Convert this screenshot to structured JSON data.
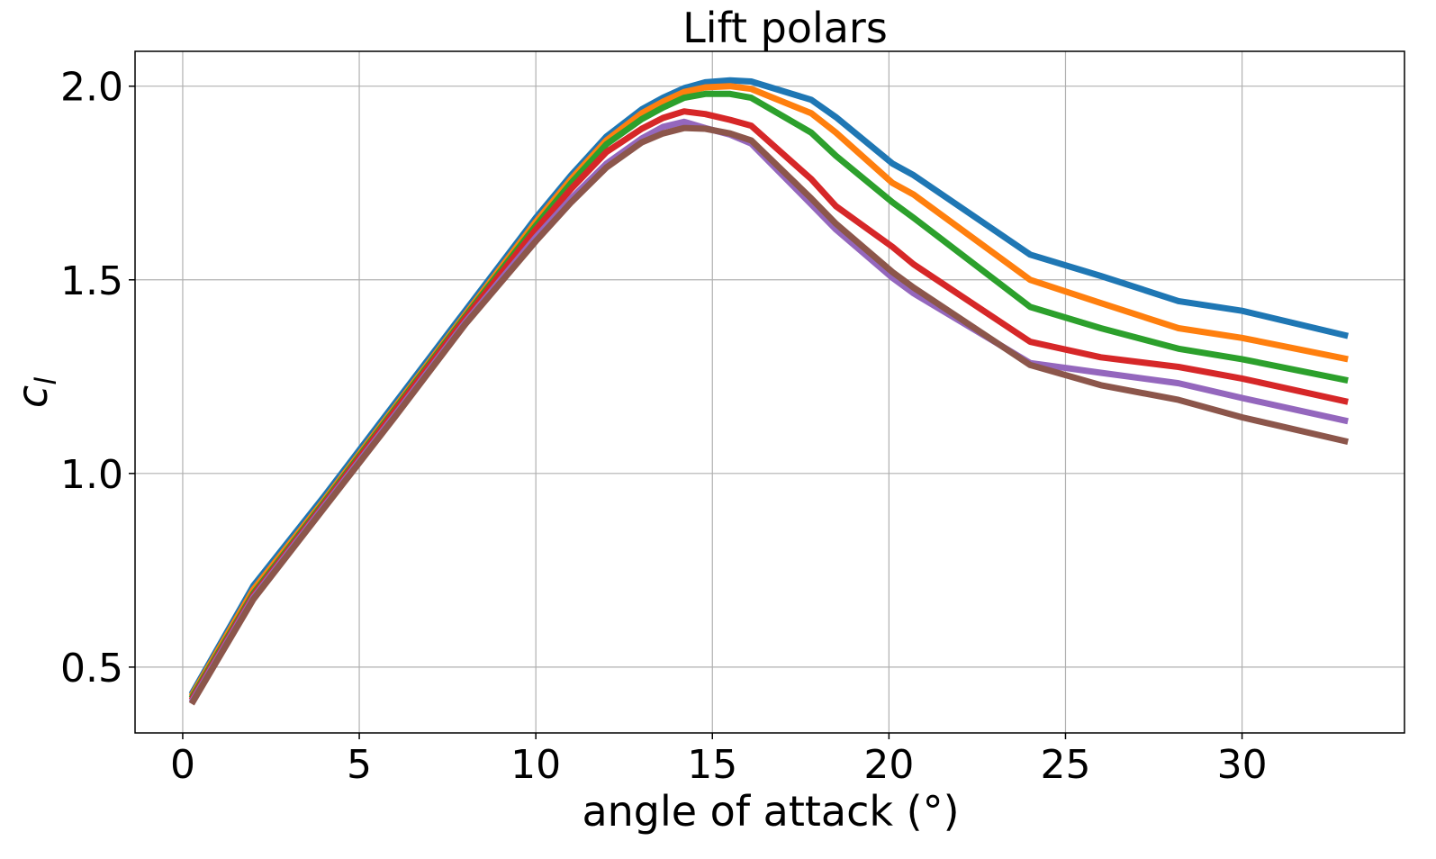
{
  "chart_data": {
    "type": "line",
    "title": "Lift polars",
    "xlabel": "angle of attack (°)",
    "ylabel": "c",
    "ylabel_subscript": "l",
    "xlim": [
      -1.35,
      34.6
    ],
    "ylim": [
      0.33,
      2.09
    ],
    "xticks": [
      0,
      5,
      10,
      15,
      20,
      25,
      30
    ],
    "xtick_labels": [
      "0",
      "5",
      "10",
      "15",
      "20",
      "25",
      "30"
    ],
    "yticks": [
      0.5,
      1.0,
      1.5,
      2.0
    ],
    "ytick_labels": [
      "0.5",
      "1.0",
      "1.5",
      "2.0"
    ],
    "grid": true,
    "legend": "none",
    "series": [
      {
        "color": "#1f77b4",
        "x": [
          0.25,
          2,
          4,
          6,
          8,
          10,
          11,
          12,
          13,
          13.6,
          14.2,
          14.8,
          15.5,
          16.1,
          17.8,
          18.5,
          20.1,
          20.7,
          24,
          26,
          28.2,
          30,
          33
        ],
        "y": [
          0.43,
          0.71,
          0.94,
          1.18,
          1.42,
          1.66,
          1.77,
          1.87,
          1.94,
          1.97,
          1.995,
          2.01,
          2.015,
          2.012,
          1.965,
          1.92,
          1.8,
          1.77,
          1.565,
          1.51,
          1.445,
          1.42,
          1.355
        ]
      },
      {
        "color": "#ff7f0e",
        "x": [
          0.25,
          2,
          4,
          6,
          8,
          10,
          11,
          12,
          13,
          13.6,
          14.2,
          14.8,
          15.5,
          16.1,
          17.8,
          18.5,
          20.1,
          20.7,
          24,
          26,
          28.2,
          30,
          33
        ],
        "y": [
          0.425,
          0.7,
          0.93,
          1.17,
          1.41,
          1.65,
          1.76,
          1.86,
          1.93,
          1.96,
          1.985,
          1.997,
          2.0,
          1.993,
          1.93,
          1.88,
          1.75,
          1.72,
          1.5,
          1.44,
          1.375,
          1.35,
          1.295
        ]
      },
      {
        "color": "#2ca02c",
        "x": [
          0.25,
          2,
          4,
          6,
          8,
          10,
          11,
          12,
          13,
          13.6,
          14.2,
          14.8,
          15.5,
          16.1,
          17.8,
          18.5,
          20.1,
          20.7,
          24,
          26,
          28.2,
          30,
          33
        ],
        "y": [
          0.42,
          0.69,
          0.925,
          1.165,
          1.405,
          1.64,
          1.75,
          1.85,
          1.915,
          1.945,
          1.97,
          1.98,
          1.98,
          1.97,
          1.88,
          1.82,
          1.7,
          1.66,
          1.43,
          1.375,
          1.322,
          1.295,
          1.24
        ]
      },
      {
        "color": "#d62728",
        "x": [
          0.25,
          2,
          4,
          6,
          8,
          10,
          11,
          12,
          13,
          13.6,
          14.2,
          14.8,
          15.5,
          16.1,
          17.8,
          18.5,
          20.1,
          20.7,
          24,
          26,
          28.2,
          30,
          33
        ],
        "y": [
          0.415,
          0.685,
          0.92,
          1.16,
          1.4,
          1.63,
          1.735,
          1.83,
          1.89,
          1.918,
          1.935,
          1.928,
          1.913,
          1.898,
          1.76,
          1.69,
          1.585,
          1.54,
          1.34,
          1.3,
          1.275,
          1.245,
          1.185
        ]
      },
      {
        "color": "#9467bd",
        "x": [
          0.25,
          2,
          4,
          6,
          8,
          10,
          11,
          12,
          13,
          13.6,
          14.2,
          14.8,
          15.5,
          16.1,
          17.8,
          18.5,
          20.1,
          20.7,
          24,
          26,
          28.2,
          30,
          33
        ],
        "y": [
          0.41,
          0.68,
          0.915,
          1.15,
          1.39,
          1.61,
          1.71,
          1.8,
          1.865,
          1.895,
          1.908,
          1.892,
          1.875,
          1.852,
          1.695,
          1.63,
          1.505,
          1.465,
          1.285,
          1.26,
          1.233,
          1.195,
          1.135
        ]
      },
      {
        "color": "#8c564b",
        "x": [
          0.25,
          2,
          4,
          6,
          8,
          10,
          11,
          12,
          13,
          13.6,
          14.2,
          14.8,
          15.5,
          16.1,
          17.8,
          18.5,
          20.1,
          20.7,
          24,
          26,
          28.2,
          30,
          33
        ],
        "y": [
          0.405,
          0.675,
          0.91,
          1.145,
          1.385,
          1.6,
          1.7,
          1.79,
          1.855,
          1.878,
          1.892,
          1.89,
          1.878,
          1.86,
          1.71,
          1.645,
          1.52,
          1.48,
          1.28,
          1.228,
          1.19,
          1.145,
          1.082
        ]
      }
    ]
  }
}
